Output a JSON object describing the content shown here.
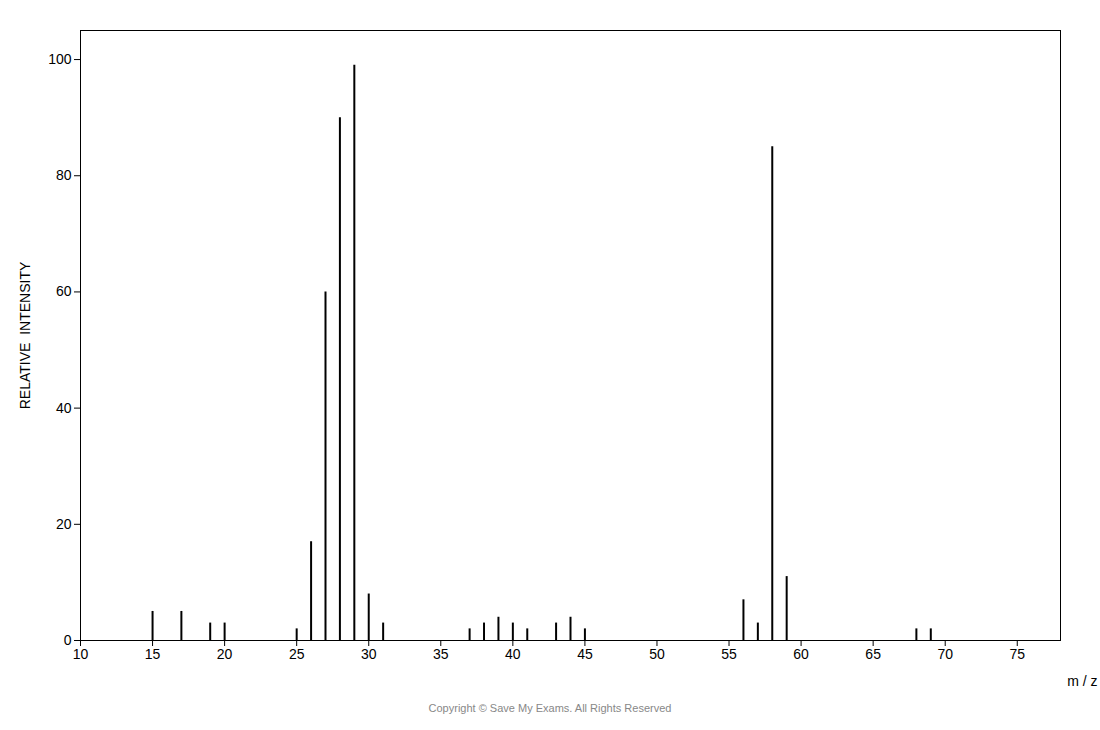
{
  "chart_data": {
    "type": "bar",
    "x": [
      15,
      17,
      19,
      20,
      25,
      26,
      27,
      28,
      29,
      30,
      31,
      37,
      38,
      39,
      40,
      41,
      43,
      44,
      45,
      56,
      57,
      58,
      59,
      68,
      69
    ],
    "values": [
      5,
      5,
      3,
      3,
      2,
      17,
      60,
      90,
      99,
      8,
      3,
      2,
      3,
      4,
      3,
      2,
      3,
      4,
      2,
      7,
      3,
      85,
      11,
      2,
      2
    ],
    "color": "#000000",
    "xlabel": "m / z",
    "ylabel": "RELATIVE  INTENSITY",
    "xlim": [
      10,
      78
    ],
    "ylim": [
      0,
      105
    ],
    "xticks": [
      10,
      15,
      20,
      25,
      30,
      35,
      40,
      45,
      50,
      55,
      60,
      65,
      70,
      75
    ],
    "yticks": [
      0,
      20,
      40,
      60,
      80,
      100
    ],
    "annotations": [
      "Copyright © Save My Exams. All Rights Reserved"
    ]
  }
}
